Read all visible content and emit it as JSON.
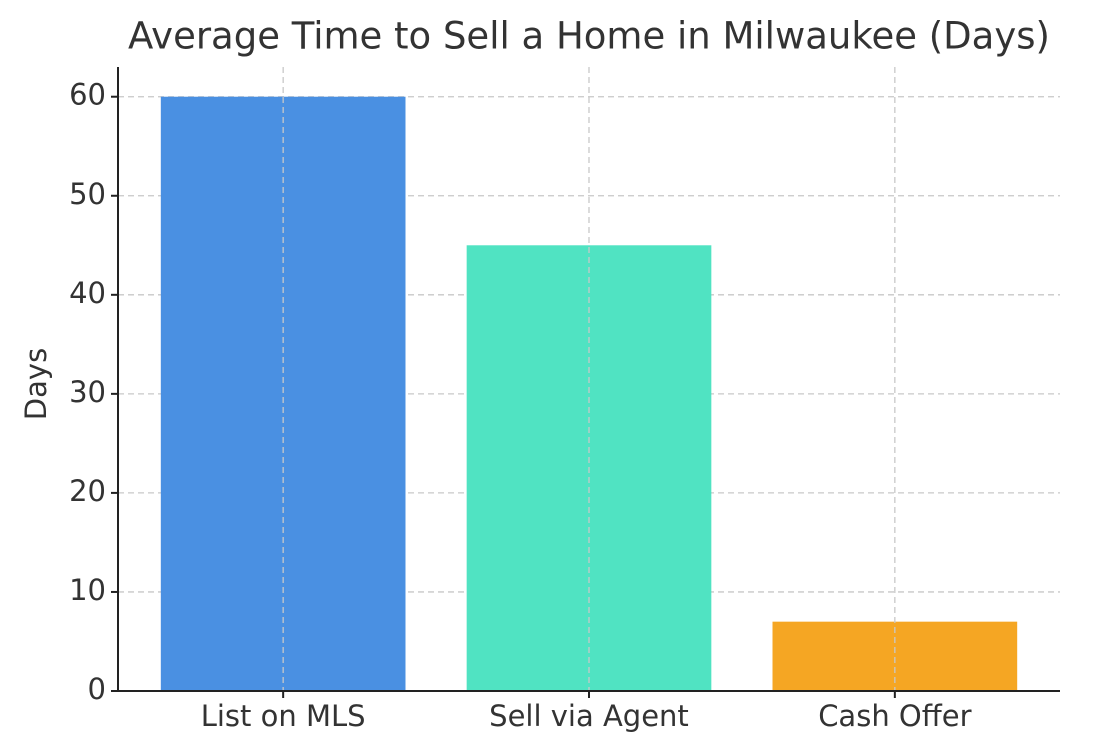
{
  "chart_data": {
    "type": "bar",
    "title": "Average Time to Sell a Home in Milwaukee (Days)",
    "y_label": "Days",
    "categories": [
      "List on MLS",
      "Sell via Agent",
      "Cash Offer"
    ],
    "values": [
      60,
      45,
      7
    ],
    "colors": [
      "#4a90e2",
      "#50e3c2",
      "#f5a623"
    ],
    "ylim": [
      0,
      63
    ],
    "yticks": [
      0,
      10,
      20,
      30,
      40,
      50,
      60
    ],
    "grid": true
  }
}
